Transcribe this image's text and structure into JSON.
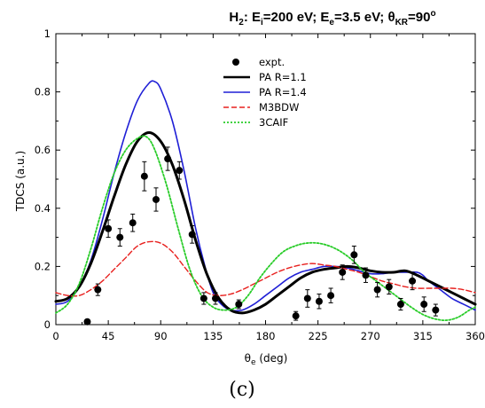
{
  "title": {
    "text_main": "H",
    "sub_h": "2",
    "text_a": ": E",
    "sub_i": "i",
    "text_b": "=200 eV; E",
    "sub_e": "e",
    "text_c": "=3.5 eV; θ",
    "sub_kr": "KR",
    "text_d": "=90",
    "sup_deg": "o"
  },
  "caption": "(c)",
  "chart_data": {
    "type": "line",
    "xlabel": {
      "main": "θ",
      "sub": "e",
      "rest": " (deg)"
    },
    "ylabel": "TDCS (a.u.)",
    "xlim": [
      0,
      360
    ],
    "ylim": [
      0,
      1
    ],
    "xticks": [
      "0",
      "45",
      "90",
      "135",
      "180",
      "225",
      "270",
      "315",
      "360"
    ],
    "yticks": [
      "0",
      "0.2",
      "0.4",
      "0.6",
      "0.8",
      "1"
    ],
    "legend_position": "top-right",
    "legend": [
      {
        "label": "expt.",
        "kind": "point",
        "color": "#000000"
      },
      {
        "label": "PA R=1.1",
        "kind": "line",
        "color": "#000000",
        "width": 3,
        "dash": ""
      },
      {
        "label": "PA R=1.4",
        "kind": "line",
        "color": "#1f1fd6",
        "width": 1.6,
        "dash": ""
      },
      {
        "label": "M3BDW",
        "kind": "line",
        "color": "#e8201e",
        "width": 1.4,
        "dash": "6,3"
      },
      {
        "label": "3CAIF",
        "kind": "line",
        "color": "#28cc28",
        "width": 1.8,
        "dash": "2,2"
      }
    ],
    "series": [
      {
        "name": "PA R=1.4",
        "color": "#1f1fd6",
        "width": 1.6,
        "dash": "",
        "points": [
          [
            0,
            0.07
          ],
          [
            10,
            0.08
          ],
          [
            20,
            0.13
          ],
          [
            30,
            0.22
          ],
          [
            40,
            0.36
          ],
          [
            50,
            0.52
          ],
          [
            60,
            0.66
          ],
          [
            70,
            0.77
          ],
          [
            80,
            0.83
          ],
          [
            85,
            0.835
          ],
          [
            90,
            0.81
          ],
          [
            100,
            0.7
          ],
          [
            110,
            0.53
          ],
          [
            120,
            0.33
          ],
          [
            128,
            0.2
          ],
          [
            135,
            0.11
          ],
          [
            142,
            0.07
          ],
          [
            150,
            0.05
          ],
          [
            160,
            0.05
          ],
          [
            170,
            0.07
          ],
          [
            180,
            0.1
          ],
          [
            190,
            0.13
          ],
          [
            200,
            0.16
          ],
          [
            210,
            0.18
          ],
          [
            220,
            0.19
          ],
          [
            230,
            0.2
          ],
          [
            240,
            0.2
          ],
          [
            250,
            0.195
          ],
          [
            260,
            0.185
          ],
          [
            270,
            0.175
          ],
          [
            280,
            0.175
          ],
          [
            290,
            0.18
          ],
          [
            300,
            0.18
          ],
          [
            310,
            0.18
          ],
          [
            315,
            0.17
          ],
          [
            320,
            0.15
          ],
          [
            330,
            0.12
          ],
          [
            340,
            0.09
          ],
          [
            350,
            0.07
          ],
          [
            360,
            0.05
          ]
        ]
      },
      {
        "name": "PA R=1.1",
        "color": "#000000",
        "width": 3,
        "dash": "",
        "points": [
          [
            0,
            0.08
          ],
          [
            10,
            0.09
          ],
          [
            20,
            0.13
          ],
          [
            30,
            0.21
          ],
          [
            40,
            0.32
          ],
          [
            50,
            0.44
          ],
          [
            60,
            0.55
          ],
          [
            70,
            0.63
          ],
          [
            80,
            0.66
          ],
          [
            90,
            0.63
          ],
          [
            100,
            0.55
          ],
          [
            110,
            0.43
          ],
          [
            120,
            0.29
          ],
          [
            130,
            0.17
          ],
          [
            140,
            0.09
          ],
          [
            150,
            0.05
          ],
          [
            160,
            0.04
          ],
          [
            170,
            0.05
          ],
          [
            180,
            0.07
          ],
          [
            190,
            0.1
          ],
          [
            200,
            0.13
          ],
          [
            210,
            0.16
          ],
          [
            220,
            0.18
          ],
          [
            230,
            0.19
          ],
          [
            240,
            0.195
          ],
          [
            250,
            0.2
          ],
          [
            260,
            0.195
          ],
          [
            270,
            0.185
          ],
          [
            280,
            0.18
          ],
          [
            290,
            0.18
          ],
          [
            300,
            0.185
          ],
          [
            310,
            0.17
          ],
          [
            320,
            0.15
          ],
          [
            330,
            0.13
          ],
          [
            340,
            0.11
          ],
          [
            350,
            0.09
          ],
          [
            360,
            0.07
          ]
        ]
      },
      {
        "name": "M3BDW",
        "color": "#e8201e",
        "width": 1.4,
        "dash": "6,3",
        "points": [
          [
            0,
            0.11
          ],
          [
            10,
            0.1
          ],
          [
            20,
            0.1
          ],
          [
            30,
            0.12
          ],
          [
            40,
            0.15
          ],
          [
            50,
            0.19
          ],
          [
            60,
            0.23
          ],
          [
            70,
            0.27
          ],
          [
            80,
            0.285
          ],
          [
            90,
            0.28
          ],
          [
            100,
            0.25
          ],
          [
            110,
            0.2
          ],
          [
            120,
            0.15
          ],
          [
            130,
            0.11
          ],
          [
            140,
            0.1
          ],
          [
            150,
            0.105
          ],
          [
            160,
            0.12
          ],
          [
            170,
            0.14
          ],
          [
            180,
            0.16
          ],
          [
            190,
            0.18
          ],
          [
            200,
            0.195
          ],
          [
            210,
            0.205
          ],
          [
            220,
            0.21
          ],
          [
            230,
            0.205
          ],
          [
            240,
            0.2
          ],
          [
            250,
            0.19
          ],
          [
            260,
            0.18
          ],
          [
            270,
            0.165
          ],
          [
            280,
            0.15
          ],
          [
            290,
            0.14
          ],
          [
            300,
            0.13
          ],
          [
            310,
            0.125
          ],
          [
            320,
            0.125
          ],
          [
            330,
            0.125
          ],
          [
            340,
            0.125
          ],
          [
            350,
            0.12
          ],
          [
            360,
            0.11
          ]
        ]
      },
      {
        "name": "3CAIF",
        "color": "#28cc28",
        "width": 1.8,
        "dash": "2,2",
        "points": [
          [
            0,
            0.04
          ],
          [
            10,
            0.07
          ],
          [
            20,
            0.14
          ],
          [
            30,
            0.26
          ],
          [
            40,
            0.4
          ],
          [
            50,
            0.52
          ],
          [
            60,
            0.6
          ],
          [
            70,
            0.64
          ],
          [
            78,
            0.645
          ],
          [
            85,
            0.6
          ],
          [
            95,
            0.48
          ],
          [
            105,
            0.33
          ],
          [
            115,
            0.19
          ],
          [
            125,
            0.1
          ],
          [
            135,
            0.06
          ],
          [
            145,
            0.05
          ],
          [
            155,
            0.06
          ],
          [
            165,
            0.1
          ],
          [
            175,
            0.16
          ],
          [
            185,
            0.21
          ],
          [
            195,
            0.25
          ],
          [
            205,
            0.27
          ],
          [
            215,
            0.28
          ],
          [
            225,
            0.28
          ],
          [
            235,
            0.27
          ],
          [
            245,
            0.25
          ],
          [
            255,
            0.22
          ],
          [
            265,
            0.18
          ],
          [
            275,
            0.15
          ],
          [
            285,
            0.12
          ],
          [
            295,
            0.09
          ],
          [
            305,
            0.06
          ],
          [
            315,
            0.035
          ],
          [
            325,
            0.02
          ],
          [
            335,
            0.015
          ],
          [
            345,
            0.025
          ],
          [
            355,
            0.05
          ],
          [
            360,
            0.06
          ]
        ]
      }
    ],
    "expt": [
      {
        "x": 27,
        "y": 0.01,
        "err": 0.0
      },
      {
        "x": 36,
        "y": 0.12,
        "err": 0.02
      },
      {
        "x": 45,
        "y": 0.33,
        "err": 0.03
      },
      {
        "x": 55,
        "y": 0.3,
        "err": 0.03
      },
      {
        "x": 66,
        "y": 0.35,
        "err": 0.03
      },
      {
        "x": 76,
        "y": 0.51,
        "err": 0.05
      },
      {
        "x": 86,
        "y": 0.43,
        "err": 0.04
      },
      {
        "x": 96,
        "y": 0.57,
        "err": 0.04
      },
      {
        "x": 106,
        "y": 0.53,
        "err": 0.03
      },
      {
        "x": 117,
        "y": 0.31,
        "err": 0.03
      },
      {
        "x": 127,
        "y": 0.09,
        "err": 0.02
      },
      {
        "x": 137,
        "y": 0.09,
        "err": 0.02
      },
      {
        "x": 157,
        "y": 0.07,
        "err": 0.015
      },
      {
        "x": 206,
        "y": 0.03,
        "err": 0.015
      },
      {
        "x": 216,
        "y": 0.09,
        "err": 0.03
      },
      {
        "x": 226,
        "y": 0.08,
        "err": 0.025
      },
      {
        "x": 236,
        "y": 0.1,
        "err": 0.025
      },
      {
        "x": 246,
        "y": 0.18,
        "err": 0.025
      },
      {
        "x": 256,
        "y": 0.24,
        "err": 0.03
      },
      {
        "x": 266,
        "y": 0.17,
        "err": 0.025
      },
      {
        "x": 276,
        "y": 0.12,
        "err": 0.025
      },
      {
        "x": 286,
        "y": 0.13,
        "err": 0.025
      },
      {
        "x": 296,
        "y": 0.07,
        "err": 0.02
      },
      {
        "x": 306,
        "y": 0.15,
        "err": 0.03
      },
      {
        "x": 316,
        "y": 0.07,
        "err": 0.025
      },
      {
        "x": 326,
        "y": 0.05,
        "err": 0.02
      }
    ]
  }
}
